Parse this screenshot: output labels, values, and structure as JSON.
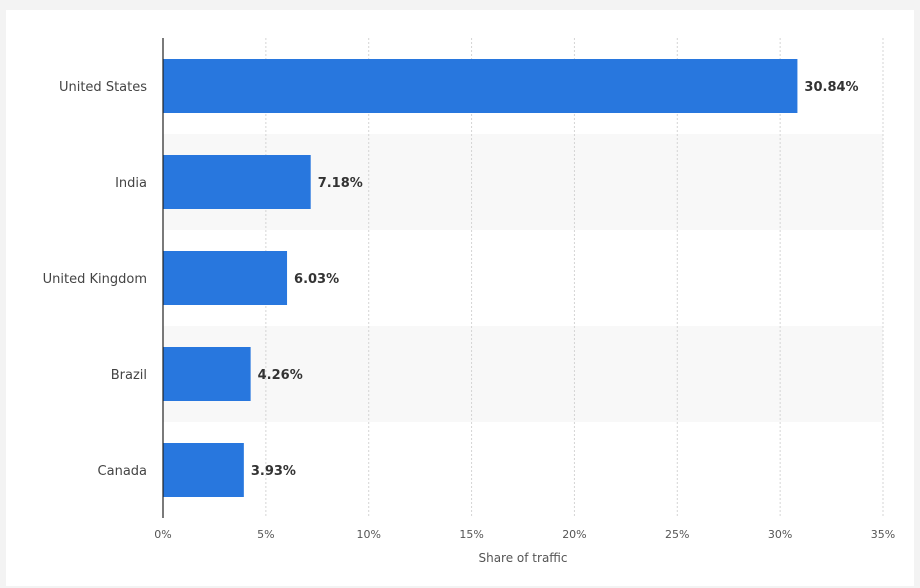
{
  "chart_data": {
    "type": "bar",
    "orientation": "horizontal",
    "categories": [
      "United States",
      "India",
      "United Kingdom",
      "Brazil",
      "Canada"
    ],
    "values": [
      30.84,
      7.18,
      6.03,
      4.26,
      3.93
    ],
    "value_labels": [
      "30.84%",
      "7.18%",
      "6.03%",
      "4.26%",
      "3.93%"
    ],
    "xlabel": "Share of traffic",
    "ylabel": "",
    "xlim": [
      0,
      35
    ],
    "x_ticks": [
      0,
      5,
      10,
      15,
      20,
      25,
      30,
      35
    ],
    "x_tick_labels": [
      "0%",
      "5%",
      "10%",
      "15%",
      "20%",
      "25%",
      "30%",
      "35%"
    ],
    "grid": "vertical-dotted",
    "bar_color": "#2877de",
    "band_color": "#f8f8f8"
  }
}
